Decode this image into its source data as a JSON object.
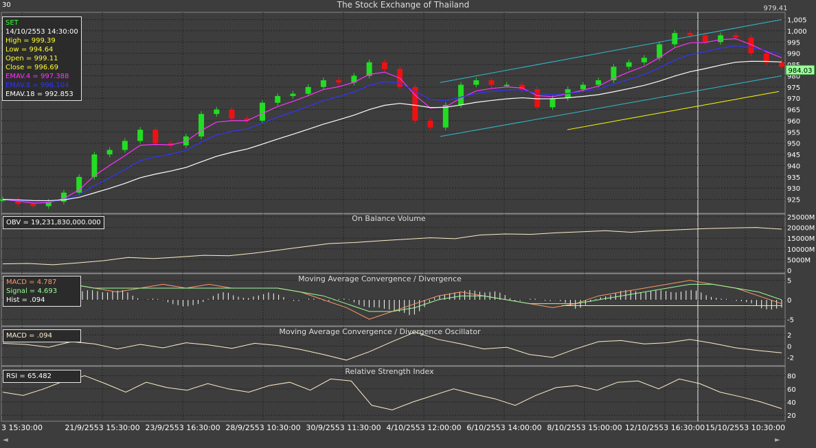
{
  "chart_title": "The Stock Exchange of Thailand",
  "corner_label": "30",
  "top_right_value": "979.41",
  "current_price_tag": "984.03",
  "colors": {
    "background": "#3d3d3d",
    "up_candle": "#22dd22",
    "down_candle": "#ee1111",
    "emav4": "#ff33ff",
    "emav8": "#3333ff",
    "emav18": "#ffffff",
    "channel": "#33bbcc",
    "trendline": "#ffff00",
    "obv": "#ffeecc",
    "macd": "#ff9966",
    "signal": "#99ff99",
    "hist": "#ffffff",
    "rsi": "#ffeecc"
  },
  "info_box": {
    "symbol": "SET",
    "datetime": "14/10/2553 14:30:00",
    "high": "High  = 999.39",
    "low": "Low   = 994.64",
    "open": "Open  = 999.11",
    "close": "Close = 996.69",
    "emav4": "EMAV.4 = 997.388",
    "emav8": "EMAV.8 = 996.104",
    "emav18": "EMAV.18 = 992.853"
  },
  "panels": {
    "obv": {
      "title": "On Balance Volume",
      "readout": "OBV = 19,231,830,000.000"
    },
    "macd": {
      "title": "Moving Average Convergence / Divergence",
      "macd": "MACD = 4.787",
      "signal": "Signal = 4.693",
      "hist": "Hist = .094"
    },
    "osc": {
      "title": "Moving Average Convergence / Divergence Oscillator",
      "readout": "MACD = .094"
    },
    "rsi": {
      "title": "Relative Strength Index",
      "readout": "RSI = 65.482"
    }
  },
  "price_axis_labels": [
    "1,005",
    "1,000",
    "995",
    "990",
    "985",
    "980",
    "975",
    "970",
    "965",
    "960",
    "955",
    "950",
    "945",
    "940",
    "935",
    "930",
    "925"
  ],
  "obv_axis_labels": [
    "25000M",
    "20000M",
    "15000M",
    "10000M",
    "5000M",
    "0"
  ],
  "macd_axis_labels": [
    "5",
    "0",
    "-5"
  ],
  "osc_axis_labels": [
    "2",
    "0",
    "-2"
  ],
  "rsi_axis_labels": [
    "80",
    "60",
    "40",
    "20"
  ],
  "x_axis_labels": [
    "3 15:30:00",
    "21/9/2553 15:30:00",
    "23/9/2553 16:30:00",
    "28/9/2553 10:30:00",
    "30/9/2553 11:30:00",
    "4/10/2553 12:00:00",
    "6/10/2553 14:00:00",
    "8/10/2553 15:00:00",
    "12/10/2553 16:30:00",
    "15/10/2553 10:30:00"
  ],
  "chart_data": [
    {
      "type": "candlestick",
      "title": "The Stock Exchange of Thailand",
      "series": [
        {
          "name": "SET",
          "x_anchor": [
            "21/9/2553 15:30:00",
            "23/9/2553 16:30:00",
            "28/9/2553 10:30:00",
            "30/9/2553 11:30:00",
            "4/10/2553 12:00:00",
            "6/10/2553 14:00:00",
            "8/10/2553 15:00:00",
            "12/10/2553 16:30:00",
            "15/10/2553 10:30:00"
          ],
          "close_path": [
            925,
            923,
            922,
            924,
            928,
            935,
            945,
            947,
            951,
            956,
            950,
            949,
            953,
            963,
            965,
            961,
            960,
            968,
            971,
            972,
            975,
            978,
            977,
            980,
            986,
            983,
            975,
            960,
            957,
            967,
            976,
            978,
            976,
            976,
            974,
            966,
            970,
            974,
            976,
            978,
            984,
            986,
            988,
            994,
            999,
            998,
            995,
            998,
            997,
            990,
            986,
            984
          ]
        },
        {
          "name": "EMAV.4",
          "last": 997.388
        },
        {
          "name": "EMAV.8",
          "last": 996.104
        },
        {
          "name": "EMAV.18",
          "last": 992.853
        }
      ],
      "last_bar": {
        "datetime": "14/10/2553 14:30:00",
        "high": 999.39,
        "low": 994.64,
        "open": 999.11,
        "close": 996.69
      },
      "ylim": [
        920,
        1007
      ],
      "grid": true
    },
    {
      "type": "line",
      "title": "On Balance Volume",
      "series": [
        {
          "name": "OBV",
          "values": [
            3000,
            3200,
            2600,
            3500,
            4500,
            6000,
            5500,
            6200,
            7000,
            6800,
            8000,
            9500,
            11000,
            12500,
            13000,
            13800,
            14500,
            15200,
            14800,
            16500,
            17000,
            16800,
            17500,
            18000,
            18500,
            17800,
            18500,
            19000,
            19500,
            19800,
            20000,
            19232
          ]
        }
      ],
      "ylim": [
        0,
        25000
      ],
      "unit": "M"
    },
    {
      "type": "line",
      "title": "Moving Average Convergence / Divergence",
      "series": [
        {
          "name": "MACD",
          "values": [
            2,
            4,
            5,
            4,
            3,
            2,
            3,
            4,
            3,
            4,
            3,
            3,
            3,
            2,
            0,
            -2,
            -5,
            -3,
            -1,
            1,
            2,
            1,
            0,
            -1,
            -2,
            -1,
            1,
            2,
            3,
            4,
            5,
            4,
            3,
            1,
            -1
          ]
        },
        {
          "name": "Signal",
          "values": [
            1,
            3,
            4,
            4,
            3,
            3,
            3,
            3,
            3,
            3,
            3,
            3,
            3,
            2,
            1,
            -1,
            -3,
            -3,
            -2,
            0,
            1,
            1,
            0,
            -1,
            -1,
            -1,
            0,
            1,
            2,
            3,
            4,
            4,
            3,
            2,
            0
          ]
        }
      ],
      "ylim": [
        -6,
        6
      ],
      "last": {
        "macd": 4.787,
        "signal": 4.693,
        "hist": 0.094
      }
    },
    {
      "type": "line",
      "title": "Moving Average Convergence / Divergence Oscillator",
      "series": [
        {
          "name": "MACD",
          "values": [
            0.5,
            0.3,
            -0.2,
            0.8,
            0.4,
            -0.5,
            0.3,
            -0.3,
            0.6,
            0.2,
            -0.4,
            0.5,
            0.1,
            -0.6,
            -1.5,
            -2.5,
            -1,
            0.8,
            2.5,
            1.2,
            0.4,
            -0.5,
            -0.2,
            -1.5,
            -2,
            -0.5,
            0.8,
            1,
            0.4,
            0.6,
            1.2,
            0.5,
            -0.3,
            -0.8,
            -1.2
          ]
        }
      ],
      "ylim": [
        -3,
        3
      ],
      "last": 0.094
    },
    {
      "type": "line",
      "title": "Relative Strength Index",
      "series": [
        {
          "name": "RSI",
          "values": [
            55,
            50,
            60,
            72,
            80,
            68,
            55,
            70,
            62,
            58,
            68,
            60,
            55,
            65,
            70,
            58,
            75,
            72,
            35,
            28,
            40,
            50,
            60,
            52,
            45,
            35,
            50,
            62,
            65,
            58,
            70,
            72,
            60,
            75,
            68,
            55,
            48,
            40,
            30
          ]
        }
      ],
      "ylim": [
        15,
        90
      ],
      "last": 65.482
    }
  ]
}
